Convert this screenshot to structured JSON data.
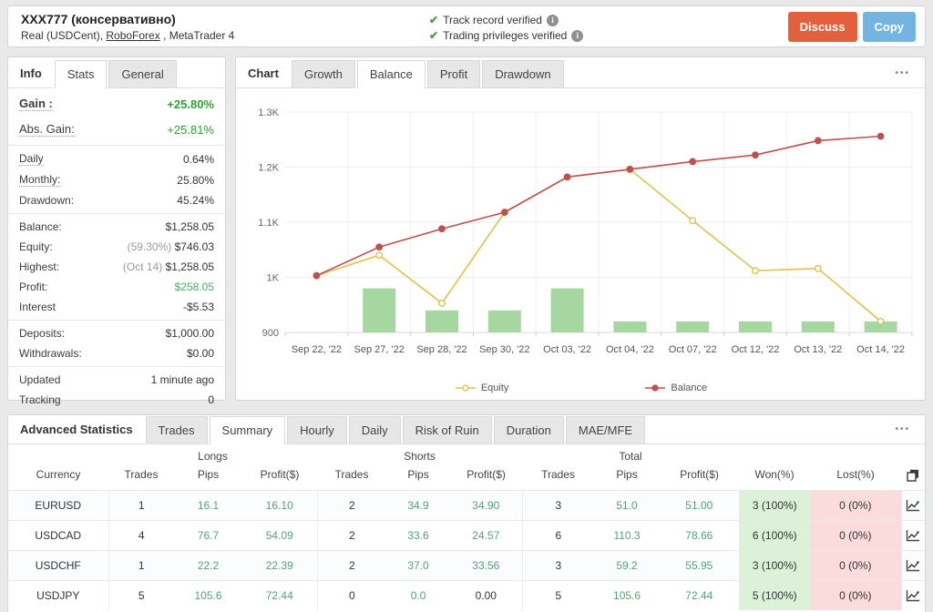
{
  "header": {
    "title": "XXX777 (консервативно)",
    "subtitle_prefix": "Real (USDCent), ",
    "broker_link": "RoboForex",
    "subtitle_suffix": " , MetaTrader 4",
    "verified": [
      "Track record verified",
      "Trading privileges verified"
    ],
    "buttons": {
      "discuss": "Discuss",
      "copy": "Copy"
    }
  },
  "icons": {
    "check": "✔",
    "info": "i",
    "dots": "•••"
  },
  "info_panel": {
    "label": "Info",
    "tabs": [
      {
        "label": "Stats",
        "active": true
      },
      {
        "label": "General",
        "active": false
      }
    ],
    "groups": [
      {
        "big": true,
        "rows": [
          {
            "label": "Gain :",
            "value": "+25.80%",
            "lcls": "dotted bold",
            "vcls": "gain"
          },
          {
            "label": "Abs. Gain:",
            "value": "+25.81%",
            "lcls": "dotted",
            "vcls": "gain2"
          }
        ]
      },
      {
        "rows": [
          {
            "label": "Daily",
            "value": "0.64%",
            "lcls": "dotted"
          },
          {
            "label": "Monthly:",
            "value": "25.80%",
            "lcls": "dotted"
          },
          {
            "label": "Drawdown:",
            "value": "45.24%"
          }
        ]
      },
      {
        "rows": [
          {
            "label": "Balance:",
            "value": "$1,258.05"
          },
          {
            "label": "Equity:",
            "pre": "(59.30%) ",
            "value": "$746.03"
          },
          {
            "label": "Highest:",
            "pre": "(Oct 14) ",
            "value": "$1,258.05"
          },
          {
            "label": "Profit:",
            "value": "$258.05",
            "vcls": "profit"
          },
          {
            "label": "Interest",
            "value": "-$5.53"
          }
        ]
      },
      {
        "rows": [
          {
            "label": "Deposits:",
            "value": "$1,000.00"
          },
          {
            "label": "Withdrawals:",
            "value": "$0.00"
          }
        ]
      },
      {
        "rows": [
          {
            "label": "Updated",
            "value": "1 minute ago"
          },
          {
            "label": "Tracking",
            "value": "0"
          }
        ]
      }
    ]
  },
  "chart_panel": {
    "label": "Chart",
    "tabs": [
      {
        "label": "Growth",
        "active": false
      },
      {
        "label": "Balance",
        "active": true
      },
      {
        "label": "Profit",
        "active": false
      },
      {
        "label": "Drawdown",
        "active": false
      }
    ]
  },
  "chart_data": {
    "type": "line",
    "categories": [
      "Sep 22, '22",
      "Sep 27, '22",
      "Sep 28, '22",
      "Sep 30, '22",
      "Oct 03, '22",
      "Oct 04, '22",
      "Oct 07, '22",
      "Oct 12, '22",
      "Oct 13, '22",
      "Oct 14, '22"
    ],
    "ylim": [
      900,
      1300
    ],
    "yticks": [
      {
        "v": 900,
        "label": "900"
      },
      {
        "v": 1000,
        "label": "1K"
      },
      {
        "v": 1100,
        "label": "1.1K"
      },
      {
        "v": 1200,
        "label": "1.2K"
      },
      {
        "v": 1300,
        "label": "1.3K"
      }
    ],
    "series": [
      {
        "name": "Equity",
        "color": "#e3c04b",
        "marker": "hollow",
        "values": [
          1003,
          1040,
          953,
          1118,
          1182,
          1196,
          1103,
          1012,
          1016,
          920
        ]
      },
      {
        "name": "Balance",
        "color": "#c0504d",
        "marker": "filled",
        "values": [
          1003,
          1055,
          1088,
          1118,
          1182,
          1196,
          1210,
          1222,
          1248,
          1256
        ]
      }
    ],
    "bars": {
      "color": "#a6d7a0",
      "values": [
        null,
        980,
        940,
        940,
        980,
        920,
        920,
        920,
        920,
        920
      ]
    },
    "grid": true,
    "legend_position": "bottom"
  },
  "stats_panel": {
    "label": "Advanced Statistics",
    "tabs": [
      {
        "label": "Trades",
        "active": false
      },
      {
        "label": "Summary",
        "active": true
      },
      {
        "label": "Hourly",
        "active": false
      },
      {
        "label": "Daily",
        "active": false
      },
      {
        "label": "Risk of Ruin",
        "active": false
      },
      {
        "label": "Duration",
        "active": false
      },
      {
        "label": "MAE/MFE",
        "active": false
      }
    ]
  },
  "table": {
    "group_headers": [
      {
        "label": "",
        "span": 1
      },
      {
        "label": "Longs",
        "span": 3
      },
      {
        "label": "Shorts",
        "span": 3
      },
      {
        "label": "Total",
        "span": 3
      },
      {
        "label": "",
        "span": 3
      }
    ],
    "columns": [
      "Currency",
      "Trades",
      "Pips",
      "Profit($)",
      "Trades",
      "Pips",
      "Profit($)",
      "Trades",
      "Pips",
      "Profit($)",
      "Won(%)",
      "Lost(%)"
    ],
    "rows": [
      {
        "currency": "EURUSD",
        "cells": [
          [
            "1",
            "n"
          ],
          [
            "16.1",
            "g"
          ],
          [
            "16.10",
            "g"
          ],
          [
            "2",
            "n"
          ],
          [
            "34.9",
            "g"
          ],
          [
            "34.90",
            "g"
          ],
          [
            "3",
            "n"
          ],
          [
            "51.0",
            "g"
          ],
          [
            "51.00",
            "g"
          ]
        ],
        "won": "3 (100%)",
        "lost": "0 (0%)"
      },
      {
        "currency": "USDCAD",
        "cells": [
          [
            "4",
            "n"
          ],
          [
            "76.7",
            "g"
          ],
          [
            "54.09",
            "g"
          ],
          [
            "2",
            "n"
          ],
          [
            "33.6",
            "g"
          ],
          [
            "24.57",
            "g"
          ],
          [
            "6",
            "n"
          ],
          [
            "110.3",
            "g"
          ],
          [
            "78.66",
            "g"
          ]
        ],
        "won": "6 (100%)",
        "lost": "0 (0%)"
      },
      {
        "currency": "USDCHF",
        "cells": [
          [
            "1",
            "n"
          ],
          [
            "22.2",
            "g"
          ],
          [
            "22.39",
            "g"
          ],
          [
            "2",
            "n"
          ],
          [
            "37.0",
            "g"
          ],
          [
            "33.56",
            "g"
          ],
          [
            "3",
            "n"
          ],
          [
            "59.2",
            "g"
          ],
          [
            "55.95",
            "g"
          ]
        ],
        "won": "3 (100%)",
        "lost": "0 (0%)"
      },
      {
        "currency": "USDJPY",
        "cells": [
          [
            "5",
            "n"
          ],
          [
            "105.6",
            "g"
          ],
          [
            "72.44",
            "g"
          ],
          [
            "0",
            "n"
          ],
          [
            "0.0",
            "g"
          ],
          [
            "0.00",
            "n"
          ],
          [
            "5",
            "n"
          ],
          [
            "105.6",
            "g"
          ],
          [
            "72.44",
            "g"
          ]
        ],
        "won": "5 (100%)",
        "lost": "0 (0%)"
      }
    ]
  }
}
